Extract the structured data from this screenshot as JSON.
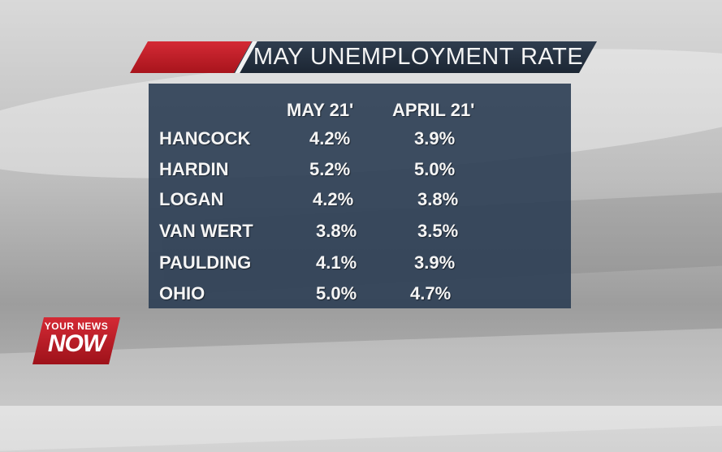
{
  "title": "MAY UNEMPLOYMENT RATE",
  "table": {
    "columns": [
      "MAY 21'",
      "APRIL 21'"
    ],
    "rows": [
      {
        "county": "HANCOCK",
        "may": "4.2%",
        "april": "3.9%"
      },
      {
        "county": "HARDIN",
        "may": "5.2%",
        "april": "5.0%"
      },
      {
        "county": "LOGAN",
        "may": "4.2%",
        "april": "3.8%"
      },
      {
        "county": "VAN WERT",
        "may": "3.8%",
        "april": "3.5%"
      },
      {
        "county": "PAULDING",
        "may": "4.1%",
        "april": "3.9%"
      },
      {
        "county": "OHIO",
        "may": "5.0%",
        "april": "4.7%"
      }
    ]
  },
  "logo": {
    "line1": "YOUR NEWS",
    "line2": "NOW"
  },
  "colors": {
    "accent_red": "#c41e28",
    "panel": "#2f4056",
    "banner": "#243142"
  }
}
